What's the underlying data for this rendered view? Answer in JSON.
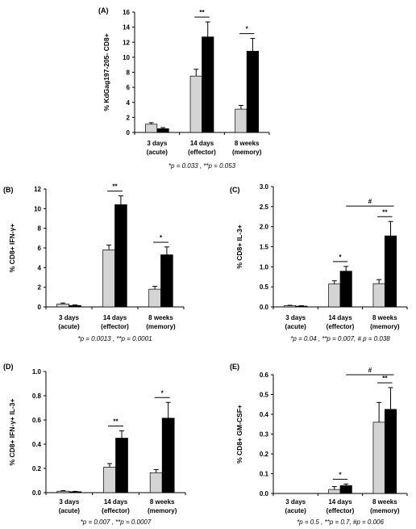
{
  "chart_data": [
    {
      "id": "A",
      "type": "bar",
      "panel_label": "(A)",
      "ylabel": "% KdGag197-205- CD8+",
      "ylim": [
        0,
        16
      ],
      "yticks": [
        "0",
        "2",
        "4",
        "6",
        "8",
        "10",
        "12",
        "14",
        "16"
      ],
      "categories": [
        [
          "3 days",
          "(acute)"
        ],
        [
          "14 days",
          "(effector)"
        ],
        [
          "8 weeks",
          "(memory)"
        ]
      ],
      "series": [
        {
          "color": "#d4d4d4",
          "values": [
            1.1,
            7.5,
            3.1
          ],
          "errors": [
            0.2,
            0.9,
            0.5
          ]
        },
        {
          "color": "#000000",
          "values": [
            0.5,
            12.7,
            10.8
          ],
          "errors": [
            0.15,
            2.0,
            1.7
          ]
        }
      ],
      "brackets": [
        {
          "category": 1,
          "label": "**"
        },
        {
          "category": 2,
          "label": "*"
        }
      ],
      "footnote": "*p = 0.033 , **p = 0.053"
    },
    {
      "id": "B",
      "type": "bar",
      "panel_label": "(B)",
      "ylabel": "% CD8+ IFN-γ+",
      "ylim": [
        0,
        12
      ],
      "yticks": [
        "0",
        "2",
        "4",
        "6",
        "8",
        "10",
        "12"
      ],
      "categories": [
        [
          "3 days",
          "(acute)"
        ],
        [
          "14 days",
          "(effector)"
        ],
        [
          "8 weeks",
          "(memory)"
        ]
      ],
      "series": [
        {
          "color": "#d4d4d4",
          "values": [
            0.3,
            5.8,
            1.8
          ],
          "errors": [
            0.1,
            0.5,
            0.3
          ]
        },
        {
          "color": "#000000",
          "values": [
            0.15,
            10.4,
            5.3
          ],
          "errors": [
            0.05,
            0.9,
            0.8
          ]
        }
      ],
      "brackets": [
        {
          "category": 1,
          "label": "**"
        },
        {
          "category": 2,
          "label": "*"
        }
      ],
      "footnote": "*p = 0.0013 , **p = 0.0001"
    },
    {
      "id": "C",
      "type": "bar",
      "panel_label": "(C)",
      "ylabel": "% CD8+ IL-3+",
      "ylim": [
        0,
        3.0
      ],
      "yticks": [
        "0.0",
        "0.5",
        "1.0",
        "1.5",
        "2.0",
        "2.5",
        "3.0"
      ],
      "categories": [
        [
          "3 days",
          "(acute)"
        ],
        [
          "14 days",
          "(effector)"
        ],
        [
          "8 weeks",
          "(memory)"
        ]
      ],
      "series": [
        {
          "color": "#d4d4d4",
          "values": [
            0.03,
            0.57,
            0.58
          ],
          "errors": [
            0.01,
            0.08,
            0.1
          ]
        },
        {
          "color": "#000000",
          "values": [
            0.02,
            0.89,
            1.77
          ],
          "errors": [
            0.01,
            0.12,
            0.36
          ]
        }
      ],
      "brackets": [
        {
          "category": 1,
          "label": "*"
        },
        {
          "category": 2,
          "label": "**"
        },
        {
          "from_category": 1,
          "to_category": 2,
          "label": "#"
        }
      ],
      "footnote": "*p = 0.04 , **p = 0.007, # p = 0.038"
    },
    {
      "id": "D",
      "type": "bar",
      "panel_label": "(D)",
      "ylabel": "% CD8+ IFN-γ+ IL-3+",
      "ylim": [
        0,
        1.0
      ],
      "yticks": [
        "0.0",
        "0.2",
        "0.4",
        "0.6",
        "0.8",
        "1.0"
      ],
      "categories": [
        [
          "3 days",
          "(acute)"
        ],
        [
          "14 days",
          "(effector)"
        ],
        [
          "8 weeks",
          "(memory)"
        ]
      ],
      "series": [
        {
          "color": "#d4d4d4",
          "values": [
            0.012,
            0.21,
            0.165
          ],
          "errors": [
            0.005,
            0.03,
            0.025
          ]
        },
        {
          "color": "#000000",
          "values": [
            0.008,
            0.45,
            0.615
          ],
          "errors": [
            0.003,
            0.06,
            0.13
          ]
        }
      ],
      "brackets": [
        {
          "category": 1,
          "label": "**"
        },
        {
          "category": 2,
          "label": "*"
        }
      ],
      "footnote": "*p = 0.007 , **p = 0.0007"
    },
    {
      "id": "E",
      "type": "bar",
      "panel_label": "(E)",
      "ylabel": "% CD8+ GM-CSF+",
      "ylim": [
        0,
        0.6
      ],
      "yticks": [
        "0.0",
        "0.1",
        "0.2",
        "0.3",
        "0.4",
        "0.5",
        "0.6"
      ],
      "categories": [
        [
          "3 days",
          "(acute)"
        ],
        [
          "14 days",
          "(effector)"
        ],
        [
          "8 weeks",
          "(memory)"
        ]
      ],
      "series": [
        {
          "color": "#d4d4d4",
          "values": [
            0.0,
            0.02,
            0.36
          ],
          "errors": [
            0.0,
            0.015,
            0.1
          ]
        },
        {
          "color": "#000000",
          "values": [
            0.0,
            0.04,
            0.425
          ],
          "errors": [
            0.0,
            0.008,
            0.11
          ]
        }
      ],
      "brackets": [
        {
          "category": 1,
          "label": "*"
        },
        {
          "category": 2,
          "label": "**"
        },
        {
          "from_category": 1,
          "to_category": 2,
          "label": "#"
        }
      ],
      "footnote": "*p = 0.5 , **p = 0.7, #p = 0.006"
    }
  ]
}
